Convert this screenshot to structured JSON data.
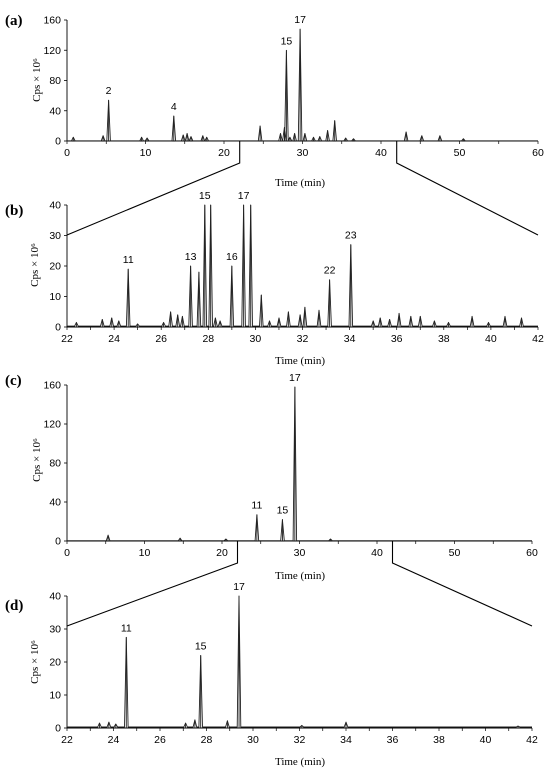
{
  "figure": {
    "panels": [
      {
        "label": "(a)",
        "xlabel": "Time (min)",
        "ylabel": "Cps × 10⁶"
      },
      {
        "label": "(b)",
        "xlabel": "Time (min)",
        "ylabel": "Cps × 10⁶"
      },
      {
        "label": "(c)",
        "xlabel": "Time (min)",
        "ylabel": "Cps × 10⁶"
      },
      {
        "label": "(d)",
        "xlabel": "Time (min)",
        "ylabel": "Cps × 10⁶"
      }
    ]
  },
  "chart_data": [
    {
      "type": "line",
      "panel": "(a)",
      "xlabel": "Time (min)",
      "ylabel": "Cps × 10⁶",
      "xlim": [
        0,
        60
      ],
      "ylim": [
        0,
        160
      ],
      "xticks": [
        0,
        10,
        20,
        30,
        40,
        50,
        60
      ],
      "yticks": [
        0,
        40,
        80,
        120,
        160
      ],
      "peaks": [
        {
          "x": 0.8,
          "y": 5
        },
        {
          "x": 4.6,
          "y": 7
        },
        {
          "x": 5.3,
          "y": 54,
          "label": "2"
        },
        {
          "x": 9.5,
          "y": 5
        },
        {
          "x": 10.2,
          "y": 4
        },
        {
          "x": 13.6,
          "y": 33,
          "label": "4"
        },
        {
          "x": 14.8,
          "y": 8
        },
        {
          "x": 15.3,
          "y": 10
        },
        {
          "x": 15.8,
          "y": 6
        },
        {
          "x": 17.3,
          "y": 7
        },
        {
          "x": 17.8,
          "y": 5
        },
        {
          "x": 24.6,
          "y": 20
        },
        {
          "x": 27.2,
          "y": 10
        },
        {
          "x": 27.7,
          "y": 18
        },
        {
          "x": 27.95,
          "y": 120,
          "label": "15"
        },
        {
          "x": 28.4,
          "y": 5
        },
        {
          "x": 29.0,
          "y": 10
        },
        {
          "x": 29.7,
          "y": 148,
          "label": "17"
        },
        {
          "x": 30.3,
          "y": 10
        },
        {
          "x": 31.4,
          "y": 5
        },
        {
          "x": 32.2,
          "y": 6
        },
        {
          "x": 33.2,
          "y": 14
        },
        {
          "x": 34.1,
          "y": 27
        },
        {
          "x": 35.5,
          "y": 4
        },
        {
          "x": 36.5,
          "y": 3
        },
        {
          "x": 43.2,
          "y": 12
        },
        {
          "x": 45.2,
          "y": 7
        },
        {
          "x": 47.5,
          "y": 7
        },
        {
          "x": 50.5,
          "y": 3
        }
      ],
      "zoom_range": [
        22,
        42
      ]
    },
    {
      "type": "line",
      "panel": "(b)",
      "xlabel": "Time (min)",
      "ylabel": "Cps × 10⁶",
      "xlim": [
        22,
        42
      ],
      "ylim": [
        0,
        40
      ],
      "xticks": [
        22,
        24,
        26,
        28,
        30,
        32,
        34,
        36,
        38,
        40,
        42
      ],
      "yticks": [
        0,
        10,
        20,
        30,
        40
      ],
      "peaks": [
        {
          "x": 22.4,
          "y": 1.5
        },
        {
          "x": 23.5,
          "y": 2.5
        },
        {
          "x": 23.9,
          "y": 3
        },
        {
          "x": 24.2,
          "y": 2
        },
        {
          "x": 24.6,
          "y": 19,
          "label": "11"
        },
        {
          "x": 25.0,
          "y": 1
        },
        {
          "x": 26.1,
          "y": 1.5
        },
        {
          "x": 26.4,
          "y": 5
        },
        {
          "x": 26.7,
          "y": 4
        },
        {
          "x": 26.9,
          "y": 3.5
        },
        {
          "x": 27.25,
          "y": 20,
          "label": "13"
        },
        {
          "x": 27.6,
          "y": 18
        },
        {
          "x": 27.85,
          "y": 40,
          "label": "15"
        },
        {
          "x": 28.1,
          "y": 40
        },
        {
          "x": 28.3,
          "y": 3
        },
        {
          "x": 28.5,
          "y": 2
        },
        {
          "x": 29.0,
          "y": 20,
          "label": "16"
        },
        {
          "x": 29.5,
          "y": 40,
          "label": "17"
        },
        {
          "x": 29.8,
          "y": 40
        },
        {
          "x": 30.25,
          "y": 10.5
        },
        {
          "x": 30.6,
          "y": 2
        },
        {
          "x": 31.0,
          "y": 3
        },
        {
          "x": 31.4,
          "y": 5
        },
        {
          "x": 31.9,
          "y": 4
        },
        {
          "x": 32.1,
          "y": 6.5
        },
        {
          "x": 32.7,
          "y": 5.5
        },
        {
          "x": 33.15,
          "y": 15.5,
          "label": "22"
        },
        {
          "x": 34.05,
          "y": 27,
          "label": "23"
        },
        {
          "x": 35.0,
          "y": 2
        },
        {
          "x": 35.3,
          "y": 3
        },
        {
          "x": 35.7,
          "y": 2.5
        },
        {
          "x": 36.1,
          "y": 4.5
        },
        {
          "x": 36.6,
          "y": 3.5
        },
        {
          "x": 37.0,
          "y": 3.5
        },
        {
          "x": 37.6,
          "y": 2
        },
        {
          "x": 38.2,
          "y": 1.5
        },
        {
          "x": 39.2,
          "y": 3.5
        },
        {
          "x": 39.9,
          "y": 1.5
        },
        {
          "x": 40.6,
          "y": 3.5
        },
        {
          "x": 41.3,
          "y": 3
        }
      ]
    },
    {
      "type": "line",
      "panel": "(c)",
      "xlabel": "Time (min)",
      "ylabel": "Cps × 10⁶",
      "xlim": [
        0,
        60
      ],
      "ylim": [
        0,
        160
      ],
      "xticks": [
        0,
        10,
        20,
        30,
        40,
        50,
        60
      ],
      "yticks": [
        0,
        40,
        80,
        120,
        160
      ],
      "peaks": [
        {
          "x": 5.3,
          "y": 6
        },
        {
          "x": 14.6,
          "y": 3
        },
        {
          "x": 20.5,
          "y": 2
        },
        {
          "x": 24.5,
          "y": 27,
          "label": "11"
        },
        {
          "x": 27.8,
          "y": 22,
          "label": "15"
        },
        {
          "x": 29.4,
          "y": 158,
          "label": "17"
        },
        {
          "x": 34.0,
          "y": 2
        }
      ],
      "zoom_range": [
        22,
        42
      ]
    },
    {
      "type": "line",
      "panel": "(d)",
      "xlabel": "Time (min)",
      "ylabel": "Cps × 10⁶",
      "xlim": [
        22,
        42
      ],
      "ylim": [
        0,
        40
      ],
      "xticks": [
        22,
        24,
        26,
        28,
        30,
        32,
        34,
        36,
        38,
        40,
        42
      ],
      "yticks": [
        0,
        10,
        20,
        30,
        40
      ],
      "peaks": [
        {
          "x": 23.4,
          "y": 1.5
        },
        {
          "x": 23.8,
          "y": 1.8
        },
        {
          "x": 24.1,
          "y": 1.2
        },
        {
          "x": 24.55,
          "y": 27.5,
          "label": "11"
        },
        {
          "x": 27.1,
          "y": 1.5
        },
        {
          "x": 27.5,
          "y": 2.5
        },
        {
          "x": 27.75,
          "y": 22,
          "label": "15"
        },
        {
          "x": 28.9,
          "y": 2.2
        },
        {
          "x": 29.4,
          "y": 40,
          "label": "17"
        },
        {
          "x": 32.1,
          "y": 0.8
        },
        {
          "x": 34.0,
          "y": 1.8
        },
        {
          "x": 41.4,
          "y": 0.6
        }
      ]
    }
  ]
}
